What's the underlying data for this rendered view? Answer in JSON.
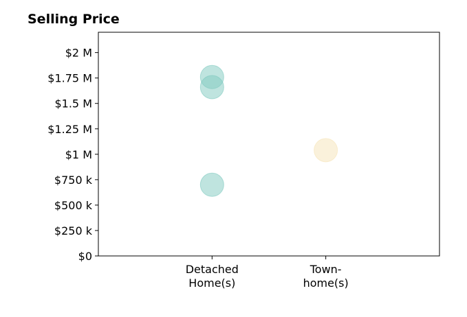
{
  "chart_data": {
    "type": "scatter",
    "title": "Selling Price",
    "xlabel": "",
    "ylabel": "",
    "categories": [
      {
        "lines": [
          "Detached",
          "Home(s)"
        ]
      },
      {
        "lines": [
          "Town-",
          "home(s)"
        ]
      }
    ],
    "x_index_range": [
      -1,
      2
    ],
    "ylim": [
      0,
      2200000
    ],
    "yticks": [
      {
        "value": 0,
        "label": "$0"
      },
      {
        "value": 250000,
        "label": "$250 k"
      },
      {
        "value": 500000,
        "label": "$500 k"
      },
      {
        "value": 750000,
        "label": "$750 k"
      },
      {
        "value": 1000000,
        "label": "$1 M"
      },
      {
        "value": 1250000,
        "label": "$1.25 M"
      },
      {
        "value": 1500000,
        "label": "$1.5 M"
      },
      {
        "value": 1750000,
        "label": "$1.75 M"
      },
      {
        "value": 2000000,
        "label": "$2 M"
      }
    ],
    "grid": false,
    "legend": "none",
    "series": [
      {
        "color": "#7fc9bf",
        "points": [
          {
            "category": 0,
            "y": 1760000
          },
          {
            "category": 0,
            "y": 1660000
          },
          {
            "category": 0,
            "y": 700000
          }
        ]
      },
      {
        "color": "#f6e4b8",
        "points": [
          {
            "category": 1,
            "y": 1040000
          }
        ]
      }
    ]
  }
}
